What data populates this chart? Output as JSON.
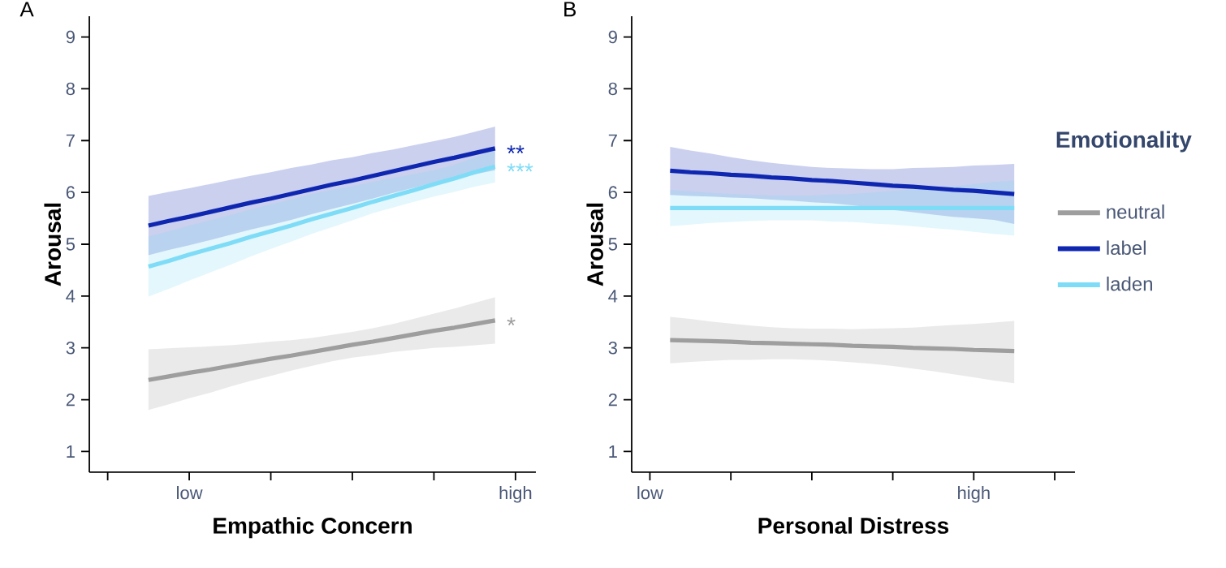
{
  "chart_data": [
    {
      "type": "line",
      "title": "A",
      "xlabel": "Empathic Concern",
      "ylabel": "Arousal",
      "ylim": [
        0.6,
        9.4
      ],
      "categories": [
        null,
        null,
        null,
        null,
        "low",
        null,
        null,
        null,
        null,
        null,
        null,
        null,
        null,
        null,
        null,
        null,
        null,
        null,
        null,
        null,
        "high"
      ],
      "yticks": [
        1,
        2,
        3,
        4,
        5,
        6,
        7,
        8,
        9
      ],
      "series": [
        {
          "color": "#9e9e9e",
          "values": [
            null,
            null,
            2.38,
            2.45,
            2.52,
            2.58,
            2.65,
            2.72,
            2.79,
            2.85,
            2.92,
            2.99,
            3.06,
            3.12,
            3.19,
            3.26,
            3.33,
            3.39,
            3.46,
            3.53,
            null
          ],
          "lower": [
            null,
            null,
            1.8,
            1.91,
            2.03,
            2.13,
            2.25,
            2.36,
            2.46,
            2.56,
            2.65,
            2.74,
            2.81,
            2.86,
            2.92,
            2.96,
            3.0,
            3.02,
            3.05,
            3.08,
            null
          ],
          "upper": [
            null,
            null,
            2.97,
            2.99,
            3.01,
            3.03,
            3.05,
            3.08,
            3.12,
            3.15,
            3.19,
            3.25,
            3.31,
            3.38,
            3.46,
            3.56,
            3.66,
            3.76,
            3.87,
            3.98,
            null
          ]
        },
        {
          "color": "#0f27b0",
          "values": [
            null,
            null,
            5.36,
            5.45,
            5.53,
            5.62,
            5.71,
            5.8,
            5.88,
            5.97,
            6.06,
            6.15,
            6.23,
            6.32,
            6.41,
            6.5,
            6.59,
            6.67,
            6.76,
            6.85,
            null
          ],
          "lower": [
            null,
            null,
            4.79,
            4.89,
            4.98,
            5.08,
            5.18,
            5.28,
            5.37,
            5.47,
            5.58,
            5.68,
            5.78,
            5.88,
            5.99,
            6.09,
            6.19,
            6.27,
            6.35,
            6.43,
            null
          ],
          "upper": [
            null,
            null,
            5.93,
            6.01,
            6.08,
            6.16,
            6.24,
            6.32,
            6.39,
            6.47,
            6.54,
            6.62,
            6.68,
            6.76,
            6.83,
            6.91,
            6.99,
            7.07,
            7.17,
            7.27,
            null
          ]
        },
        {
          "color": "#7fdcf7",
          "values": [
            null,
            null,
            4.57,
            4.68,
            4.8,
            4.91,
            5.02,
            5.14,
            5.25,
            5.36,
            5.48,
            5.59,
            5.7,
            5.82,
            5.93,
            6.04,
            6.16,
            6.27,
            6.39,
            6.5,
            null
          ],
          "lower": [
            null,
            null,
            3.99,
            4.14,
            4.3,
            4.45,
            4.6,
            4.76,
            4.91,
            5.05,
            5.2,
            5.33,
            5.46,
            5.6,
            5.71,
            5.82,
            5.92,
            6.01,
            6.11,
            6.19,
            null
          ],
          "upper": [
            null,
            null,
            5.15,
            5.25,
            5.36,
            5.46,
            5.56,
            5.67,
            5.77,
            5.86,
            5.97,
            6.05,
            6.12,
            6.2,
            6.28,
            6.35,
            6.43,
            6.53,
            6.67,
            6.81,
            null
          ]
        }
      ],
      "annotations": [
        "**",
        "***",
        "*"
      ]
    },
    {
      "type": "line",
      "title": "B",
      "xlabel": "Personal Distress",
      "ylabel": "Arousal",
      "ylim": [
        0.6,
        9.4
      ],
      "categories": [
        "low",
        null,
        null,
        null,
        null,
        null,
        null,
        null,
        null,
        null,
        null,
        null,
        null,
        null,
        null,
        null,
        "high",
        null,
        null,
        null,
        null
      ],
      "yticks": [
        1,
        2,
        3,
        4,
        5,
        6,
        7,
        8,
        9
      ],
      "series": [
        {
          "name": "neutral",
          "color": "#9e9e9e",
          "values": [
            null,
            3.15,
            3.14,
            3.13,
            3.12,
            3.1,
            3.09,
            3.08,
            3.07,
            3.06,
            3.04,
            3.03,
            3.02,
            3.0,
            2.99,
            2.98,
            2.96,
            2.95,
            2.94,
            null,
            null
          ],
          "lower": [
            null,
            2.7,
            2.73,
            2.75,
            2.77,
            2.77,
            2.78,
            2.78,
            2.77,
            2.75,
            2.72,
            2.69,
            2.65,
            2.6,
            2.55,
            2.49,
            2.43,
            2.37,
            2.32,
            null,
            null
          ],
          "upper": [
            null,
            3.6,
            3.56,
            3.51,
            3.47,
            3.43,
            3.4,
            3.38,
            3.37,
            3.37,
            3.36,
            3.37,
            3.38,
            3.39,
            3.42,
            3.44,
            3.46,
            3.49,
            3.52,
            null,
            null
          ]
        },
        {
          "name": "label",
          "color": "#0f27b0",
          "values": [
            null,
            6.42,
            6.39,
            6.37,
            6.34,
            6.32,
            6.29,
            6.27,
            6.24,
            6.22,
            6.19,
            6.16,
            6.13,
            6.11,
            6.08,
            6.05,
            6.03,
            6.0,
            5.97,
            null,
            null
          ],
          "lower": [
            null,
            5.95,
            5.93,
            5.92,
            5.9,
            5.89,
            5.86,
            5.84,
            5.81,
            5.79,
            5.75,
            5.71,
            5.66,
            5.62,
            5.57,
            5.53,
            5.5,
            5.47,
            5.39,
            null,
            null
          ],
          "upper": [
            null,
            6.88,
            6.81,
            6.75,
            6.68,
            6.62,
            6.57,
            6.53,
            6.49,
            6.47,
            6.46,
            6.45,
            6.45,
            6.47,
            6.48,
            6.49,
            6.52,
            6.53,
            6.55,
            null,
            null
          ]
        },
        {
          "name": "laden",
          "color": "#7fdcf7",
          "values": [
            null,
            5.7,
            5.7,
            5.7,
            5.7,
            5.7,
            5.7,
            5.7,
            5.7,
            5.7,
            5.7,
            5.7,
            5.7,
            5.7,
            5.7,
            5.7,
            5.7,
            5.7,
            5.7,
            null,
            null
          ],
          "lower": [
            null,
            5.35,
            5.38,
            5.41,
            5.43,
            5.45,
            5.46,
            5.46,
            5.46,
            5.44,
            5.43,
            5.4,
            5.38,
            5.35,
            5.31,
            5.28,
            5.24,
            5.2,
            5.17,
            null,
            null
          ],
          "upper": [
            null,
            6.05,
            6.02,
            5.99,
            5.97,
            5.95,
            5.94,
            5.94,
            5.94,
            5.96,
            5.97,
            6.0,
            6.03,
            6.06,
            6.09,
            6.12,
            6.16,
            6.2,
            6.23,
            null,
            null
          ]
        }
      ],
      "legend": "right",
      "legend_title": "Emotionality"
    }
  ]
}
